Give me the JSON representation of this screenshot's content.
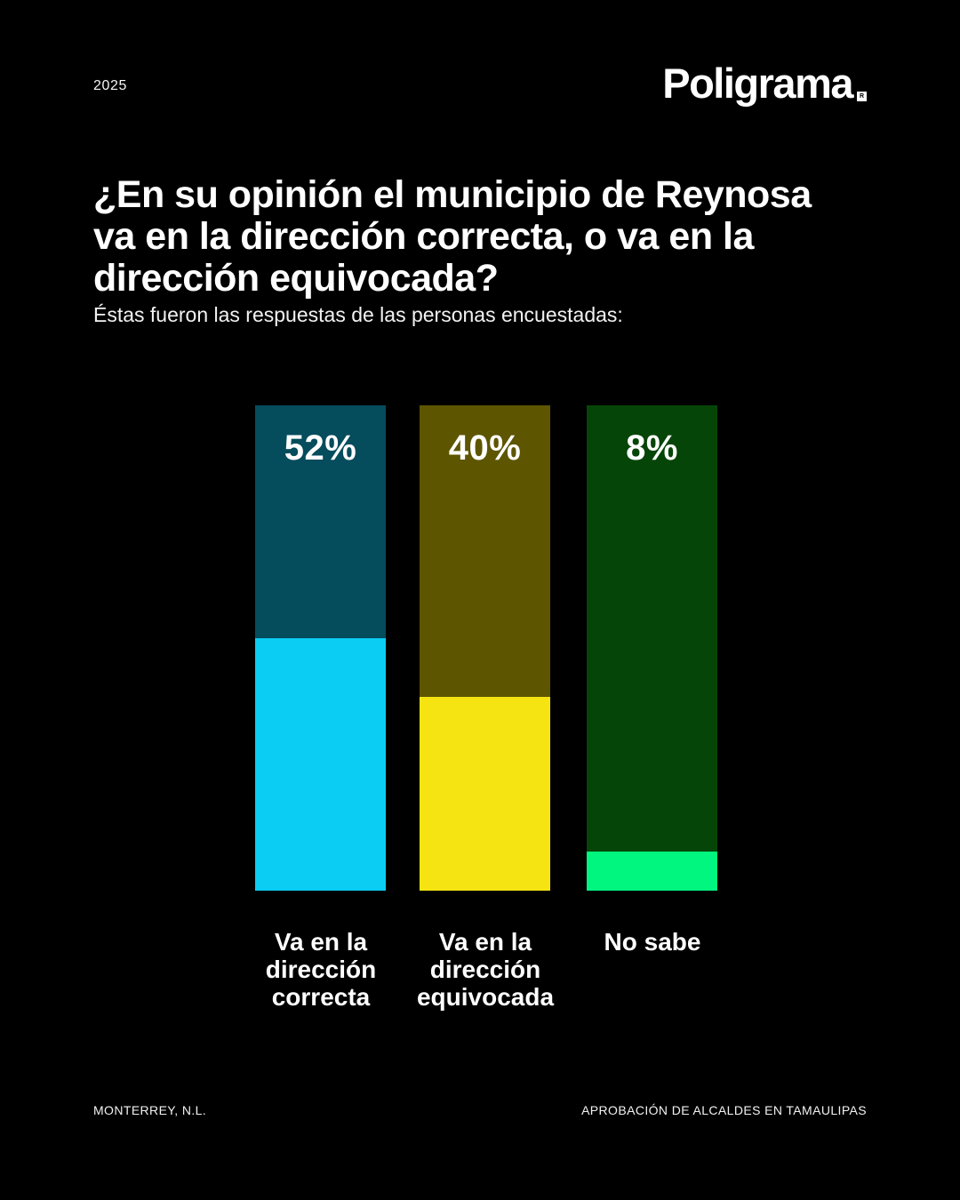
{
  "header": {
    "year": "2025",
    "brand": "Poligrama",
    "brand_mark": "R"
  },
  "question": {
    "title": "¿En su opinión el municipio de Reynosa\nva en la dirección correcta, o va en la\ndirección equivocada?",
    "subtitle": "Éstas fueron las respuestas de las personas encuestadas:"
  },
  "chart_data": {
    "type": "bar",
    "title": "¿En su opinión el municipio de Reynosa va en la dirección correcta, o va en la dirección equivocada?",
    "subtitle": "Éstas fueron las respuestas de las personas encuestadas:",
    "categories": [
      "Va en la\ndirección\ncorrecta",
      "Va en la\ndirección\nequivocada",
      "No sabe"
    ],
    "values": [
      52,
      40,
      8
    ],
    "value_labels": [
      "52%",
      "40%",
      "8%"
    ],
    "xlabel": "",
    "ylabel": "",
    "ylim": [
      0,
      100
    ],
    "grid": false,
    "legend": false,
    "colors": {
      "background": "#000000",
      "text": "#ffffff",
      "fills": [
        "#0bcdf4",
        "#f6e412",
        "#00f67f"
      ],
      "tracks": [
        "#054c5c",
        "#5d5500",
        "#064508"
      ]
    }
  },
  "footer": {
    "left": "MONTERREY, N.L.",
    "right": "APROBACIÓN DE ALCALDES EN TAMAULIPAS"
  }
}
